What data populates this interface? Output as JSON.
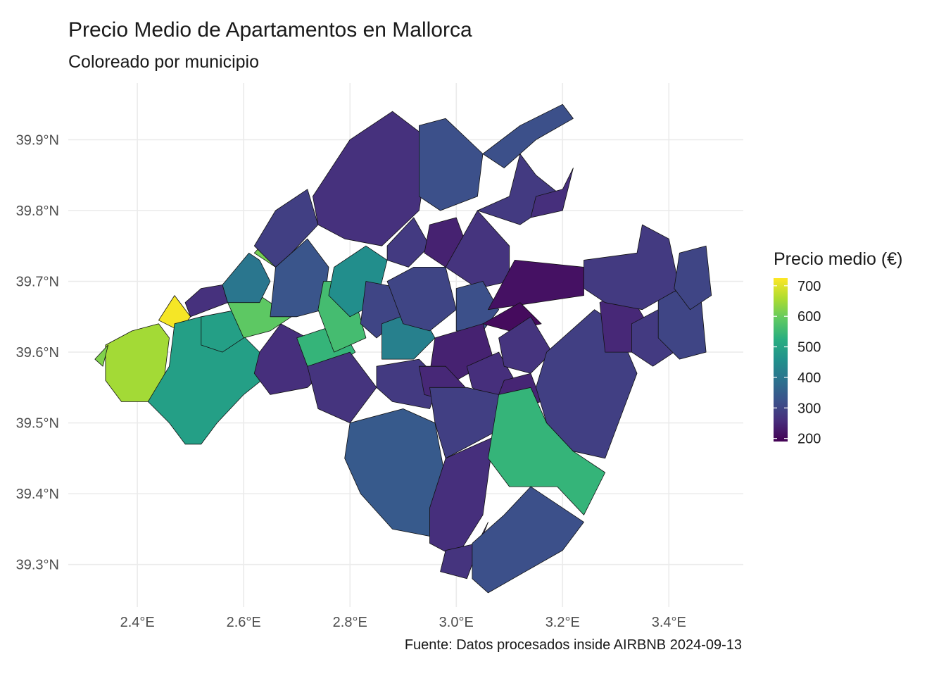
{
  "map": {
    "title": "Precio Medio de Apartamentos en Mallorca",
    "subtitle": "Coloreado por municipio",
    "caption": "Fuente: Datos procesados inside AIRBNB 2024-09-13",
    "lon_range": [
      2.27,
      3.54
    ],
    "lat_range": [
      39.24,
      39.98
    ],
    "x_ticks": [
      {
        "value": 2.4,
        "label": "2.4°E"
      },
      {
        "value": 2.6,
        "label": "2.6°E"
      },
      {
        "value": 2.8,
        "label": "2.8°E"
      },
      {
        "value": 3.0,
        "label": "3.0°E"
      },
      {
        "value": 3.2,
        "label": "3.2°E"
      },
      {
        "value": 3.4,
        "label": "3.4°E"
      }
    ],
    "y_ticks": [
      {
        "value": 39.9,
        "label": "39.9°N"
      },
      {
        "value": 39.8,
        "label": "39.8°N"
      },
      {
        "value": 39.7,
        "label": "39.7°N"
      },
      {
        "value": 39.6,
        "label": "39.6°N"
      },
      {
        "value": 39.5,
        "label": "39.5°N"
      },
      {
        "value": 39.4,
        "label": "39.4°N"
      },
      {
        "value": 39.3,
        "label": "39.3°N"
      }
    ],
    "grid": true
  },
  "legend": {
    "title": "Precio medio (€)",
    "palette": "viridis",
    "min": 190,
    "max": 725,
    "ticks": [
      {
        "value": 700,
        "label": "700"
      },
      {
        "value": 600,
        "label": "600"
      },
      {
        "value": 500,
        "label": "500"
      },
      {
        "value": 400,
        "label": "400"
      },
      {
        "value": 300,
        "label": "300"
      },
      {
        "value": 200,
        "label": "200"
      }
    ]
  },
  "municipalities": [
    {
      "price": 650,
      "pts": [
        [
          2.39,
          39.63
        ],
        [
          2.44,
          39.64
        ],
        [
          2.46,
          39.62
        ],
        [
          2.45,
          39.56
        ],
        [
          2.42,
          39.53
        ],
        [
          2.37,
          39.53
        ],
        [
          2.34,
          39.56
        ],
        [
          2.34,
          39.61
        ]
      ]
    },
    {
      "price": 620,
      "pts": [
        [
          2.345,
          39.61
        ],
        [
          2.32,
          39.59
        ],
        [
          2.335,
          39.58
        ]
      ]
    },
    {
      "price": 718,
      "pts": [
        [
          2.44,
          39.645
        ],
        [
          2.47,
          39.68
        ],
        [
          2.5,
          39.65
        ],
        [
          2.48,
          39.63
        ]
      ]
    },
    {
      "price": 490,
      "pts": [
        [
          2.47,
          39.64
        ],
        [
          2.52,
          39.65
        ],
        [
          2.59,
          39.63
        ],
        [
          2.63,
          39.6
        ],
        [
          2.65,
          39.57
        ],
        [
          2.6,
          39.54
        ],
        [
          2.55,
          39.5
        ],
        [
          2.52,
          39.47
        ],
        [
          2.49,
          39.47
        ],
        [
          2.46,
          39.5
        ],
        [
          2.42,
          39.53
        ],
        [
          2.46,
          39.58
        ]
      ]
    },
    {
      "price": 490,
      "pts": [
        [
          2.52,
          39.65
        ],
        [
          2.59,
          39.66
        ],
        [
          2.6,
          39.62
        ],
        [
          2.56,
          39.6
        ],
        [
          2.52,
          39.61
        ]
      ]
    },
    {
      "price": 590,
      "pts": [
        [
          2.57,
          39.67
        ],
        [
          2.63,
          39.68
        ],
        [
          2.69,
          39.65
        ],
        [
          2.65,
          39.63
        ],
        [
          2.6,
          39.62
        ]
      ]
    },
    {
      "price": 265,
      "pts": [
        [
          2.49,
          39.67
        ],
        [
          2.52,
          39.69
        ],
        [
          2.56,
          39.695
        ],
        [
          2.57,
          39.67
        ],
        [
          2.5,
          39.65
        ]
      ]
    },
    {
      "price": 400,
      "pts": [
        [
          2.56,
          39.695
        ],
        [
          2.61,
          39.74
        ],
        [
          2.63,
          39.73
        ],
        [
          2.65,
          39.7
        ],
        [
          2.63,
          39.67
        ],
        [
          2.57,
          39.67
        ]
      ]
    },
    {
      "price": 610,
      "pts": [
        [
          2.62,
          39.74
        ],
        [
          2.67,
          39.78
        ],
        [
          2.69,
          39.75
        ],
        [
          2.66,
          39.72
        ]
      ]
    },
    {
      "price": 290,
      "pts": [
        [
          2.62,
          39.75
        ],
        [
          2.66,
          39.8
        ],
        [
          2.72,
          39.83
        ],
        [
          2.74,
          39.78
        ],
        [
          2.69,
          39.74
        ],
        [
          2.66,
          39.72
        ]
      ]
    },
    {
      "price": 330,
      "pts": [
        [
          2.66,
          39.72
        ],
        [
          2.72,
          39.76
        ],
        [
          2.76,
          39.72
        ],
        [
          2.75,
          39.66
        ],
        [
          2.7,
          39.65
        ],
        [
          2.65,
          39.65
        ]
      ]
    },
    {
      "price": 260,
      "pts": [
        [
          2.63,
          39.6
        ],
        [
          2.67,
          39.64
        ],
        [
          2.72,
          39.62
        ],
        [
          2.76,
          39.58
        ],
        [
          2.72,
          39.55
        ],
        [
          2.65,
          39.54
        ],
        [
          2.62,
          39.57
        ]
      ]
    },
    {
      "price": 540,
      "pts": [
        [
          2.7,
          39.62
        ],
        [
          2.78,
          39.64
        ],
        [
          2.81,
          39.6
        ],
        [
          2.77,
          39.58
        ],
        [
          2.72,
          39.58
        ]
      ]
    },
    {
      "price": 270,
      "pts": [
        [
          2.72,
          39.58
        ],
        [
          2.8,
          39.6
        ],
        [
          2.85,
          39.55
        ],
        [
          2.8,
          39.5
        ],
        [
          2.74,
          39.52
        ]
      ]
    },
    {
      "price": 340,
      "pts": [
        [
          2.8,
          39.5
        ],
        [
          2.9,
          39.52
        ],
        [
          2.96,
          39.5
        ],
        [
          2.98,
          39.42
        ],
        [
          2.95,
          39.34
        ],
        [
          2.88,
          39.35
        ],
        [
          2.82,
          39.4
        ],
        [
          2.79,
          39.45
        ]
      ]
    },
    {
      "price": 560,
      "pts": [
        [
          2.75,
          39.7
        ],
        [
          2.8,
          39.7
        ],
        [
          2.83,
          39.62
        ],
        [
          2.77,
          39.6
        ],
        [
          2.74,
          39.66
        ]
      ]
    },
    {
      "price": 450,
      "pts": [
        [
          2.77,
          39.72
        ],
        [
          2.83,
          39.75
        ],
        [
          2.87,
          39.73
        ],
        [
          2.85,
          39.67
        ],
        [
          2.8,
          39.65
        ],
        [
          2.76,
          39.68
        ]
      ]
    },
    {
      "price": 300,
      "pts": [
        [
          2.83,
          39.7
        ],
        [
          2.9,
          39.69
        ],
        [
          2.9,
          39.65
        ],
        [
          2.85,
          39.62
        ],
        [
          2.82,
          39.64
        ]
      ]
    },
    {
      "price": 420,
      "pts": [
        [
          2.86,
          39.64
        ],
        [
          2.93,
          39.66
        ],
        [
          2.96,
          39.62
        ],
        [
          2.92,
          39.59
        ],
        [
          2.86,
          39.59
        ]
      ]
    },
    {
      "price": 280,
      "pts": [
        [
          2.85,
          39.58
        ],
        [
          2.93,
          39.59
        ],
        [
          2.97,
          39.56
        ],
        [
          2.95,
          39.52
        ],
        [
          2.88,
          39.53
        ],
        [
          2.85,
          39.55
        ]
      ]
    },
    {
      "price": 265,
      "pts": [
        [
          2.73,
          39.82
        ],
        [
          2.8,
          39.9
        ],
        [
          2.88,
          39.94
        ],
        [
          2.95,
          39.9
        ],
        [
          2.93,
          39.8
        ],
        [
          2.86,
          39.75
        ],
        [
          2.79,
          39.76
        ],
        [
          2.74,
          39.78
        ]
      ]
    },
    {
      "price": 320,
      "pts": [
        [
          2.93,
          39.92
        ],
        [
          2.98,
          39.93
        ],
        [
          3.05,
          39.88
        ],
        [
          3.04,
          39.82
        ],
        [
          2.97,
          39.8
        ],
        [
          2.93,
          39.82
        ]
      ]
    },
    {
      "price": 280,
      "pts": [
        [
          2.87,
          39.75
        ],
        [
          2.92,
          39.79
        ],
        [
          2.95,
          39.75
        ],
        [
          2.91,
          39.72
        ],
        [
          2.87,
          39.73
        ]
      ]
    },
    {
      "price": 240,
      "pts": [
        [
          2.95,
          39.78
        ],
        [
          3.0,
          39.79
        ],
        [
          3.02,
          39.75
        ],
        [
          2.98,
          39.72
        ],
        [
          2.94,
          39.74
        ]
      ]
    },
    {
      "price": 270,
      "pts": [
        [
          2.98,
          39.72
        ],
        [
          3.04,
          39.8
        ],
        [
          3.1,
          39.75
        ],
        [
          3.1,
          39.7
        ],
        [
          3.04,
          39.69
        ]
      ]
    },
    {
      "price": 280,
      "pts": [
        [
          3.04,
          39.8
        ],
        [
          3.1,
          39.82
        ],
        [
          3.12,
          39.88
        ],
        [
          3.15,
          39.85
        ],
        [
          3.2,
          39.82
        ],
        [
          3.12,
          39.78
        ]
      ]
    },
    {
      "price": 320,
      "pts": [
        [
          3.05,
          39.88
        ],
        [
          3.12,
          39.92
        ],
        [
          3.2,
          39.95
        ],
        [
          3.22,
          39.93
        ],
        [
          3.15,
          39.9
        ],
        [
          3.09,
          39.86
        ]
      ]
    },
    {
      "price": 260,
      "pts": [
        [
          3.15,
          39.82
        ],
        [
          3.2,
          39.83
        ],
        [
          3.22,
          39.86
        ],
        [
          3.2,
          39.8
        ],
        [
          3.14,
          39.79
        ]
      ]
    },
    {
      "price": 300,
      "pts": [
        [
          2.87,
          39.7
        ],
        [
          2.92,
          39.72
        ],
        [
          2.98,
          39.72
        ],
        [
          3.0,
          39.66
        ],
        [
          2.95,
          39.63
        ],
        [
          2.9,
          39.64
        ]
      ]
    },
    {
      "price": 320,
      "pts": [
        [
          3.0,
          39.69
        ],
        [
          3.05,
          39.7
        ],
        [
          3.08,
          39.66
        ],
        [
          3.05,
          39.63
        ],
        [
          3.0,
          39.63
        ]
      ]
    },
    {
      "price": 215,
      "pts": [
        [
          3.06,
          39.66
        ],
        [
          3.11,
          39.73
        ],
        [
          3.24,
          39.72
        ],
        [
          3.24,
          39.68
        ],
        [
          3.15,
          39.67
        ]
      ]
    },
    {
      "price": 205,
      "pts": [
        [
          3.05,
          39.64
        ],
        [
          3.12,
          39.67
        ],
        [
          3.16,
          39.64
        ],
        [
          3.1,
          39.63
        ]
      ]
    },
    {
      "price": 240,
      "pts": [
        [
          2.96,
          39.62
        ],
        [
          3.05,
          39.64
        ],
        [
          3.07,
          39.59
        ],
        [
          3.0,
          39.56
        ],
        [
          2.95,
          39.57
        ]
      ]
    },
    {
      "price": 250,
      "pts": [
        [
          2.93,
          39.58
        ],
        [
          2.98,
          39.58
        ],
        [
          3.03,
          39.54
        ],
        [
          2.99,
          39.53
        ],
        [
          2.94,
          39.54
        ]
      ]
    },
    {
      "price": 260,
      "pts": [
        [
          3.02,
          39.58
        ],
        [
          3.08,
          39.6
        ],
        [
          3.11,
          39.56
        ],
        [
          3.07,
          39.53
        ],
        [
          3.03,
          39.55
        ]
      ]
    },
    {
      "price": 270,
      "pts": [
        [
          3.08,
          39.62
        ],
        [
          3.14,
          39.65
        ],
        [
          3.18,
          39.6
        ],
        [
          3.14,
          39.57
        ],
        [
          3.09,
          39.58
        ]
      ]
    },
    {
      "price": 245,
      "pts": [
        [
          3.09,
          39.56
        ],
        [
          3.14,
          39.57
        ],
        [
          3.16,
          39.53
        ],
        [
          3.11,
          39.52
        ],
        [
          3.08,
          39.54
        ]
      ]
    },
    {
      "price": 290,
      "pts": [
        [
          2.95,
          39.55
        ],
        [
          3.02,
          39.55
        ],
        [
          3.08,
          39.54
        ],
        [
          3.08,
          39.49
        ],
        [
          2.98,
          39.45
        ],
        [
          2.96,
          39.5
        ]
      ]
    },
    {
      "price": 260,
      "pts": [
        [
          2.98,
          39.45
        ],
        [
          3.07,
          39.48
        ],
        [
          3.05,
          39.37
        ],
        [
          3.0,
          39.31
        ],
        [
          2.95,
          39.33
        ],
        [
          2.95,
          39.38
        ]
      ]
    },
    {
      "price": 270,
      "pts": [
        [
          2.98,
          39.32
        ],
        [
          3.04,
          39.33
        ],
        [
          3.06,
          39.36
        ],
        [
          3.02,
          39.28
        ],
        [
          2.97,
          39.29
        ]
      ]
    },
    {
      "price": 320,
      "pts": [
        [
          3.03,
          39.33
        ],
        [
          3.09,
          39.37
        ],
        [
          3.14,
          39.41
        ],
        [
          3.24,
          39.36
        ],
        [
          3.2,
          39.32
        ],
        [
          3.13,
          39.29
        ],
        [
          3.06,
          39.26
        ],
        [
          3.03,
          39.28
        ]
      ]
    },
    {
      "price": 540,
      "pts": [
        [
          3.08,
          39.54
        ],
        [
          3.14,
          39.55
        ],
        [
          3.17,
          39.5
        ],
        [
          3.22,
          39.46
        ],
        [
          3.28,
          39.43
        ],
        [
          3.24,
          39.37
        ],
        [
          3.19,
          39.41
        ],
        [
          3.1,
          39.41
        ],
        [
          3.06,
          39.45
        ]
      ]
    },
    {
      "price": 290,
      "pts": [
        [
          3.17,
          39.6
        ],
        [
          3.26,
          39.66
        ],
        [
          3.3,
          39.64
        ],
        [
          3.34,
          39.57
        ],
        [
          3.28,
          39.45
        ],
        [
          3.22,
          39.46
        ],
        [
          3.17,
          39.5
        ],
        [
          3.15,
          39.55
        ]
      ]
    },
    {
      "price": 250,
      "pts": [
        [
          3.27,
          39.67
        ],
        [
          3.32,
          39.69
        ],
        [
          3.36,
          39.64
        ],
        [
          3.33,
          39.6
        ],
        [
          3.28,
          39.6
        ]
      ]
    },
    {
      "price": 280,
      "pts": [
        [
          3.33,
          39.64
        ],
        [
          3.38,
          39.66
        ],
        [
          3.41,
          39.6
        ],
        [
          3.37,
          39.58
        ],
        [
          3.33,
          39.6
        ]
      ]
    },
    {
      "price": 300,
      "pts": [
        [
          3.38,
          39.69
        ],
        [
          3.46,
          39.68
        ],
        [
          3.47,
          39.6
        ],
        [
          3.42,
          39.59
        ],
        [
          3.38,
          39.62
        ]
      ]
    },
    {
      "price": 280,
      "pts": [
        [
          3.24,
          39.73
        ],
        [
          3.34,
          39.74
        ],
        [
          3.35,
          39.78
        ],
        [
          3.4,
          39.76
        ],
        [
          3.42,
          39.69
        ],
        [
          3.35,
          39.66
        ],
        [
          3.28,
          39.67
        ],
        [
          3.24,
          39.69
        ]
      ]
    },
    {
      "price": 300,
      "pts": [
        [
          3.42,
          39.74
        ],
        [
          3.47,
          39.75
        ],
        [
          3.48,
          39.68
        ],
        [
          3.44,
          39.66
        ],
        [
          3.41,
          39.69
        ]
      ]
    }
  ]
}
